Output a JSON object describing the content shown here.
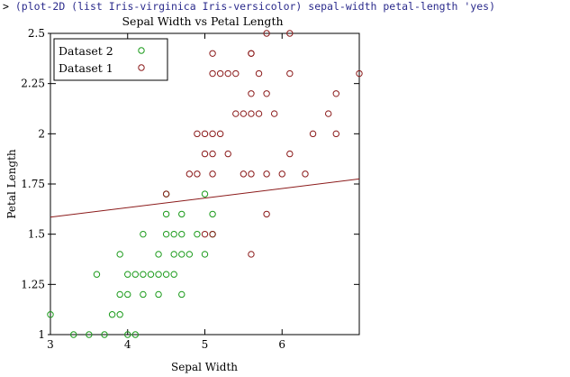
{
  "repl": {
    "prompt": ">",
    "command": "(plot-2D (list Iris-virginica Iris-versicolor) sepal-width petal-length 'yes)"
  },
  "colors": {
    "dataset_1": "#8b1a1a",
    "dataset_2": "#1a9a1a",
    "fit_line": "#8b1a1a",
    "axes": "#000000"
  },
  "chart_data": {
    "type": "scatter",
    "title": "Sepal Width vs Petal Length",
    "xlabel": "Sepal Width",
    "ylabel": "Petal Length",
    "xlim": [
      3,
      7
    ],
    "ylim": [
      1,
      2.5
    ],
    "x_ticks": [
      "3",
      "4",
      "5",
      "6"
    ],
    "y_ticks": [
      "1",
      "1.25",
      "1.5",
      "1.75",
      "2",
      "2.25",
      "2.5"
    ],
    "legend": {
      "position": "top-left",
      "entries": [
        "Dataset 2",
        "Dataset 1"
      ]
    },
    "series": [
      {
        "name": "Dataset 2",
        "points": [
          [
            3.0,
            1.1
          ],
          [
            3.3,
            1.0
          ],
          [
            3.5,
            1.0
          ],
          [
            3.7,
            1.0
          ],
          [
            4.0,
            1.0
          ],
          [
            4.1,
            1.0
          ],
          [
            3.8,
            1.1
          ],
          [
            3.9,
            1.1
          ],
          [
            3.6,
            1.3
          ],
          [
            4.0,
            1.3
          ],
          [
            4.1,
            1.3
          ],
          [
            4.2,
            1.3
          ],
          [
            4.3,
            1.3
          ],
          [
            4.4,
            1.3
          ],
          [
            4.5,
            1.3
          ],
          [
            4.6,
            1.3
          ],
          [
            3.9,
            1.2
          ],
          [
            4.0,
            1.2
          ],
          [
            4.2,
            1.2
          ],
          [
            4.4,
            1.2
          ],
          [
            4.7,
            1.2
          ],
          [
            3.9,
            1.4
          ],
          [
            4.4,
            1.4
          ],
          [
            4.6,
            1.4
          ],
          [
            4.7,
            1.4
          ],
          [
            4.8,
            1.4
          ],
          [
            5.0,
            1.4
          ],
          [
            4.2,
            1.5
          ],
          [
            4.5,
            1.5
          ],
          [
            4.6,
            1.5
          ],
          [
            4.7,
            1.5
          ],
          [
            4.9,
            1.5
          ],
          [
            5.1,
            1.5
          ],
          [
            4.5,
            1.6
          ],
          [
            4.7,
            1.6
          ],
          [
            5.1,
            1.6
          ],
          [
            4.5,
            1.7
          ],
          [
            5.0,
            1.7
          ]
        ]
      },
      {
        "name": "Dataset 1",
        "points": [
          [
            5.1,
            2.4
          ],
          [
            5.6,
            2.4
          ],
          [
            5.6,
            2.4
          ],
          [
            5.8,
            2.5
          ],
          [
            6.1,
            2.5
          ],
          [
            7.0,
            2.3
          ],
          [
            5.1,
            2.3
          ],
          [
            5.2,
            2.3
          ],
          [
            5.3,
            2.3
          ],
          [
            5.4,
            2.3
          ],
          [
            5.7,
            2.3
          ],
          [
            6.1,
            2.3
          ],
          [
            5.6,
            2.2
          ],
          [
            5.8,
            2.2
          ],
          [
            6.7,
            2.2
          ],
          [
            5.4,
            2.1
          ],
          [
            5.5,
            2.1
          ],
          [
            5.6,
            2.1
          ],
          [
            5.7,
            2.1
          ],
          [
            5.9,
            2.1
          ],
          [
            6.6,
            2.1
          ],
          [
            4.9,
            2.0
          ],
          [
            5.0,
            2.0
          ],
          [
            5.1,
            2.0
          ],
          [
            5.2,
            2.0
          ],
          [
            6.4,
            2.0
          ],
          [
            6.7,
            2.0
          ],
          [
            5.0,
            1.9
          ],
          [
            5.1,
            1.9
          ],
          [
            5.3,
            1.9
          ],
          [
            6.1,
            1.9
          ],
          [
            4.8,
            1.8
          ],
          [
            4.9,
            1.8
          ],
          [
            5.1,
            1.8
          ],
          [
            5.5,
            1.8
          ],
          [
            5.6,
            1.8
          ],
          [
            5.8,
            1.8
          ],
          [
            6.0,
            1.8
          ],
          [
            6.3,
            1.8
          ],
          [
            4.5,
            1.7
          ],
          [
            5.8,
            1.6
          ],
          [
            5.6,
            1.4
          ],
          [
            5.0,
            1.5
          ],
          [
            5.1,
            1.5
          ]
        ]
      }
    ],
    "fit_line": {
      "x": [
        3,
        7
      ],
      "y": [
        1.585,
        1.775
      ]
    }
  }
}
